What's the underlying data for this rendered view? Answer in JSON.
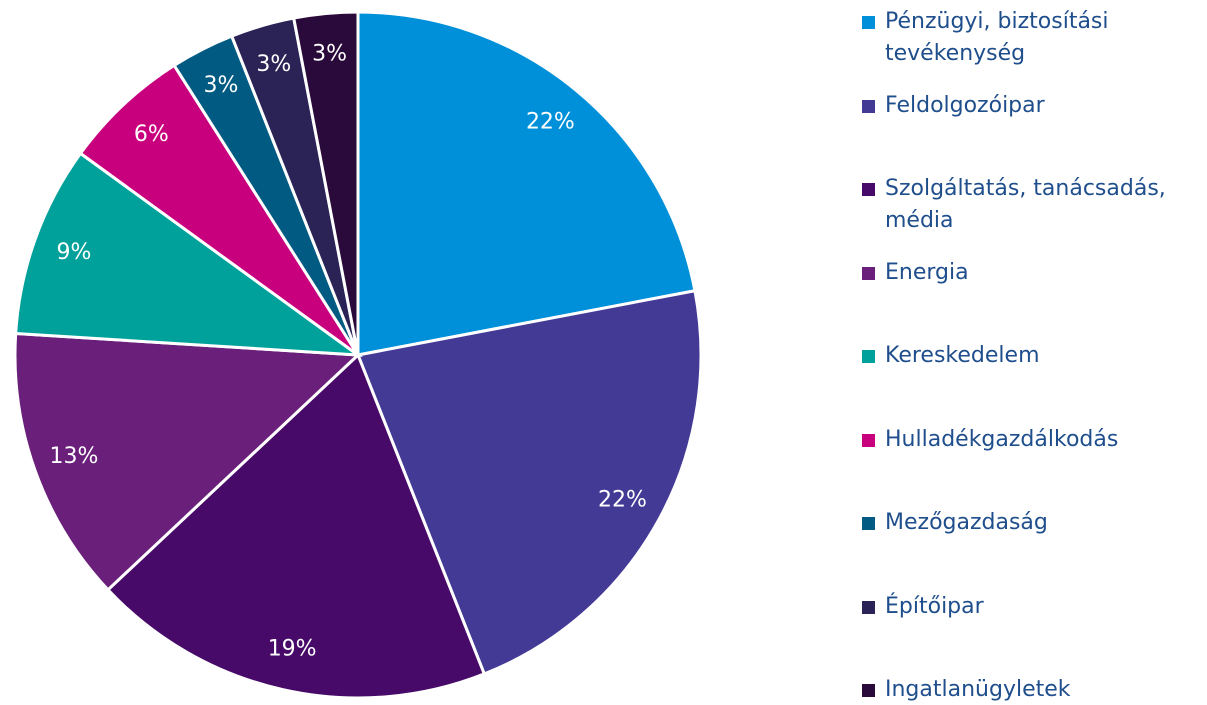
{
  "chart_data": {
    "type": "pie",
    "categories": [
      "Pénzügyi, biztosítási tevékenység",
      "Feldolgozóipar",
      "Szolgáltatás, tanácsadás, média",
      "Energia",
      "Kereskedelem",
      "Hulladékgazdálkodás",
      "Mezőgazdaság",
      "Építőipar",
      "Ingatlanügyletek"
    ],
    "values": [
      22,
      22,
      19,
      13,
      9,
      6,
      3,
      3,
      3
    ],
    "value_labels": [
      "22%",
      "22%",
      "19%",
      "13%",
      "9%",
      "6%",
      "3%",
      "3%",
      "3%"
    ],
    "colors": [
      "#0090d9",
      "#433a96",
      "#470a68",
      "#6a1f7a",
      "#00a19a",
      "#c8007e",
      "#005a82",
      "#2b2256",
      "#2a0a3a"
    ],
    "legend": "right"
  }
}
